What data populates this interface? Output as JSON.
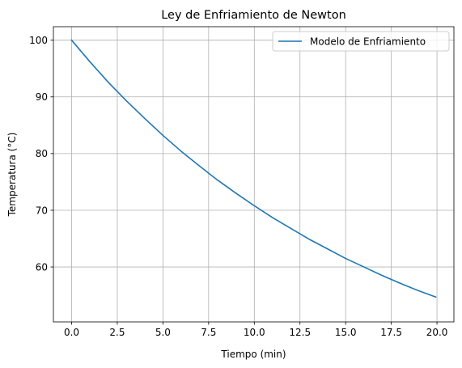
{
  "chart_data": {
    "type": "line",
    "title": "Ley de Enfriamiento de Newton",
    "xlabel": "Tiempo (min)",
    "ylabel": "Temperatura (°C)",
    "xlim": [
      -0.9965,
      20.9265
    ],
    "ylim": [
      50.31,
      102.38
    ],
    "xticks": [
      0.0,
      2.5,
      5.0,
      7.5,
      10.0,
      12.5,
      15.0,
      17.5,
      20.0
    ],
    "xtick_labels": [
      "0.0",
      "2.5",
      "5.0",
      "7.5",
      "10.0",
      "12.5",
      "15.0",
      "17.5",
      "20.0"
    ],
    "yticks": [
      60,
      70,
      80,
      90,
      100
    ],
    "ytick_labels": [
      "60",
      "70",
      "80",
      "90",
      "100"
    ],
    "grid": true,
    "legend_position": "top-right",
    "series": [
      {
        "name": "Modelo de Enfriamiento",
        "color": "#1f77b4",
        "x": [
          0,
          1,
          2,
          3,
          4,
          5,
          6,
          7,
          8,
          9,
          10,
          11,
          12,
          13,
          14,
          15,
          16,
          17,
          18,
          19,
          19.93
        ],
        "y": [
          100.0,
          96.2,
          92.6,
          89.3,
          86.2,
          83.2,
          80.4,
          77.8,
          75.3,
          73.0,
          70.8,
          68.7,
          66.8,
          64.9,
          63.2,
          61.5,
          60.0,
          58.5,
          57.1,
          55.8,
          54.7
        ]
      }
    ]
  }
}
